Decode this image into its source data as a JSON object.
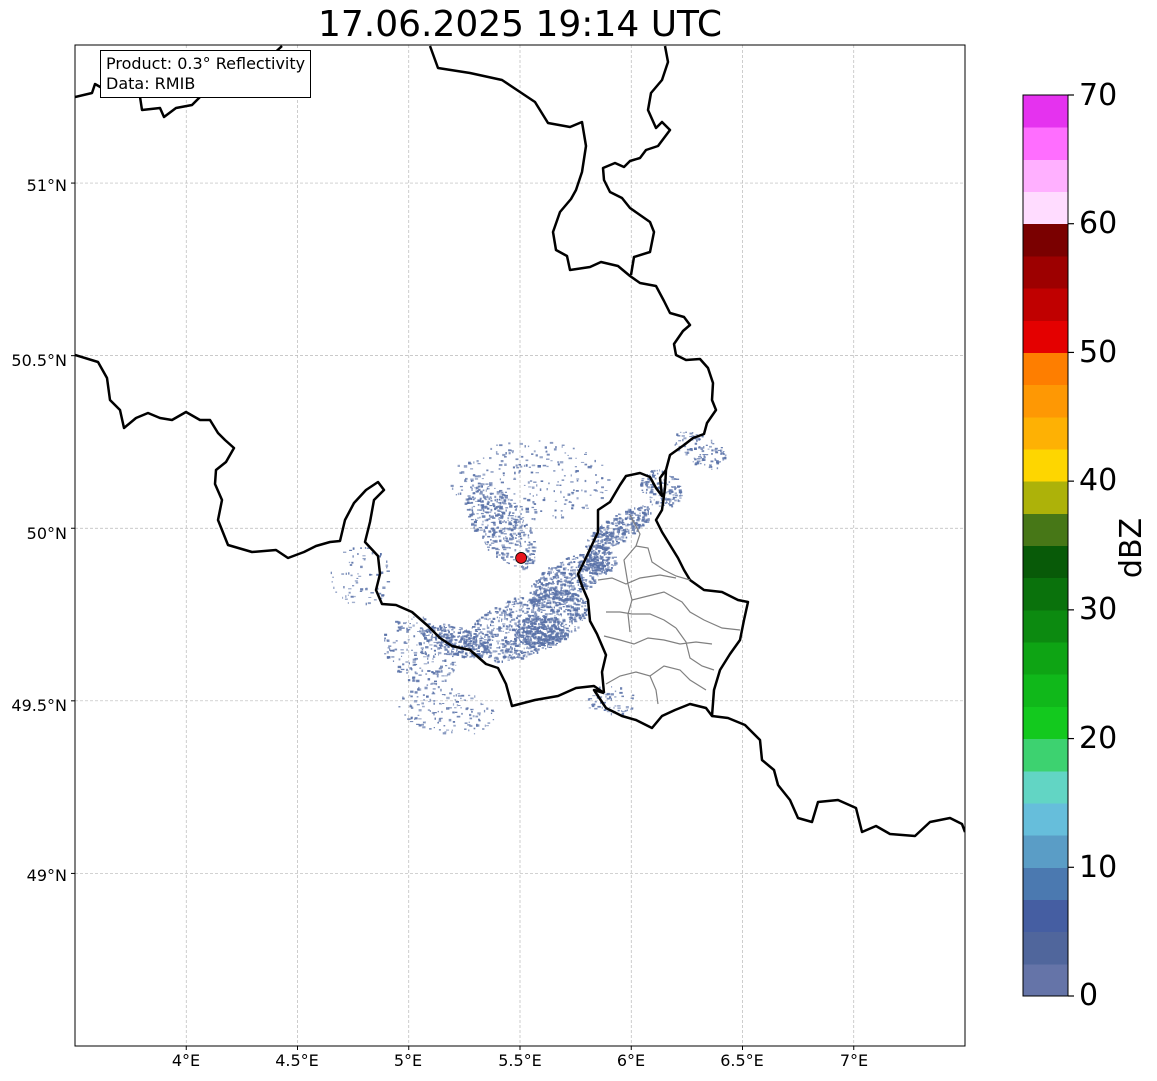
{
  "title": "17.06.2025 19:14 UTC",
  "info": {
    "product": "Product: 0.3° Reflectivity",
    "data": "Data: RMIB"
  },
  "map": {
    "projection": "PlateCarree",
    "lon_range": [
      3.5,
      7.5
    ],
    "lat_range": [
      48.5,
      51.4
    ],
    "gridlines": true,
    "xtick_labels": [
      "4°E",
      "4.5°E",
      "5°E",
      "5.5°E",
      "6°E",
      "6.5°E",
      "7°E"
    ],
    "ytick_labels": [
      "49°N",
      "49.5°N",
      "50°N",
      "50.5°N",
      "51°N"
    ],
    "radar_site": {
      "lon": 5.505,
      "lat": 49.914,
      "color": "#e8141c"
    },
    "echo_color": "#5a72a8",
    "borders": [
      "France",
      "Belgium",
      "Luxembourg",
      "Germany",
      "Netherlands"
    ]
  },
  "colorbar": {
    "label": "dBZ",
    "min": 0,
    "max": 70,
    "step": 2.5,
    "tick_labels": [
      "0",
      "10",
      "20",
      "30",
      "40",
      "50",
      "60",
      "70"
    ],
    "colors": [
      "#6574a8",
      "#50669c",
      "#455ea2",
      "#4b79b0",
      "#5a9dc6",
      "#66bedb",
      "#62d5c4",
      "#3dd270",
      "#13c91e",
      "#10b81a",
      "#0ea414",
      "#0c8a10",
      "#0a720c",
      "#085a08",
      "#477717",
      "#adb209",
      "#fed600",
      "#feb104",
      "#fe9804",
      "#fe7e00",
      "#e40000",
      "#c00000",
      "#9d0000",
      "#7a0000",
      "#ffdcff",
      "#ffb0ff",
      "#ff6eff",
      "#e532ef"
    ]
  }
}
